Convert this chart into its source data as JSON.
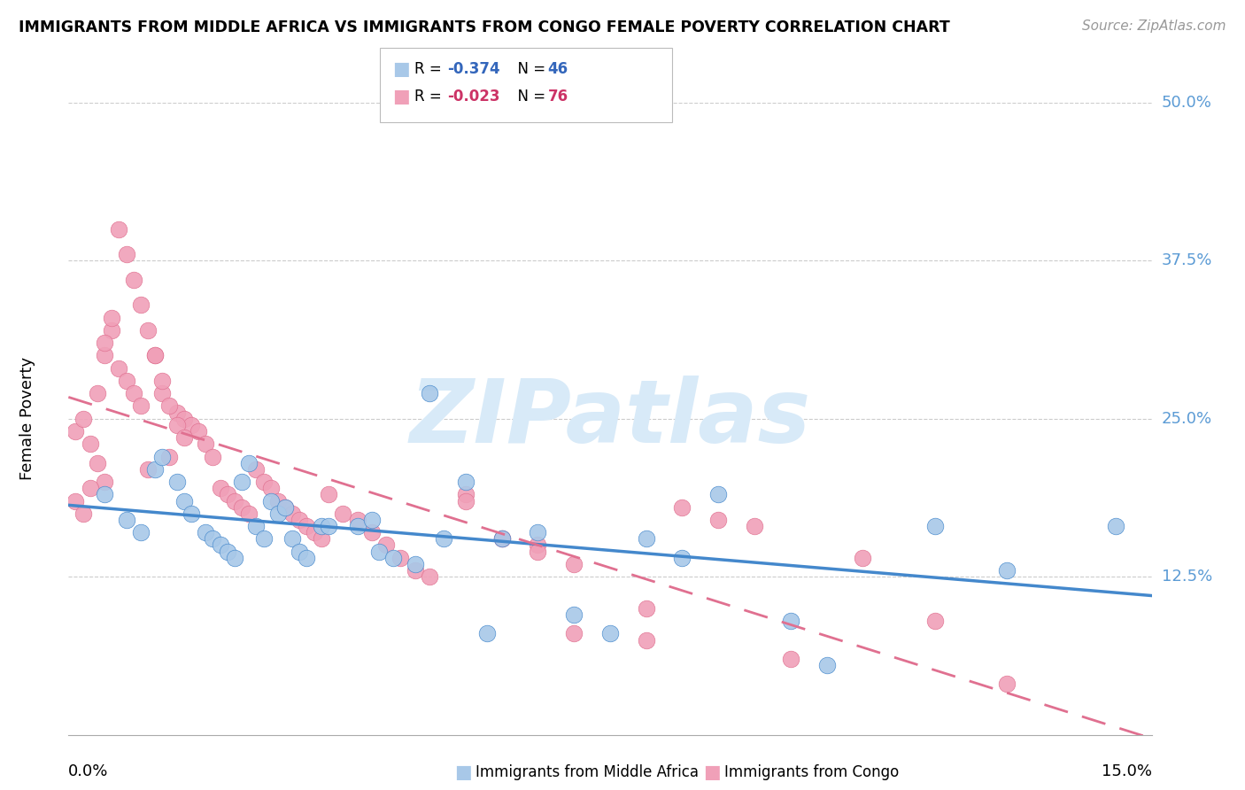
{
  "title": "IMMIGRANTS FROM MIDDLE AFRICA VS IMMIGRANTS FROM CONGO FEMALE POVERTY CORRELATION CHART",
  "source": "Source: ZipAtlas.com",
  "ylabel": "Female Poverty",
  "xlim": [
    0.0,
    0.15
  ],
  "ylim": [
    0.0,
    0.5
  ],
  "color_blue": "#a8c8e8",
  "color_pink": "#f0a0b8",
  "color_blue_line": "#4488cc",
  "color_pink_line": "#e07090",
  "color_grid": "#cccccc",
  "color_right_axis": "#5b9bd5",
  "watermark_color": "#d8eaf8",
  "blue_points_x": [
    0.005,
    0.008,
    0.012,
    0.015,
    0.016,
    0.017,
    0.019,
    0.02,
    0.021,
    0.022,
    0.023,
    0.024,
    0.025,
    0.026,
    0.027,
    0.028,
    0.029,
    0.03,
    0.031,
    0.032,
    0.033,
    0.035,
    0.036,
    0.04,
    0.042,
    0.043,
    0.045,
    0.048,
    0.05,
    0.052,
    0.055,
    0.058,
    0.06,
    0.065,
    0.07,
    0.075,
    0.08,
    0.085,
    0.09,
    0.1,
    0.105,
    0.12,
    0.13,
    0.145,
    0.01,
    0.013
  ],
  "blue_points_y": [
    0.19,
    0.17,
    0.21,
    0.2,
    0.185,
    0.175,
    0.16,
    0.155,
    0.15,
    0.145,
    0.14,
    0.2,
    0.215,
    0.165,
    0.155,
    0.185,
    0.175,
    0.18,
    0.155,
    0.145,
    0.14,
    0.165,
    0.165,
    0.165,
    0.17,
    0.145,
    0.14,
    0.135,
    0.27,
    0.155,
    0.2,
    0.08,
    0.155,
    0.16,
    0.095,
    0.08,
    0.155,
    0.14,
    0.19,
    0.09,
    0.055,
    0.165,
    0.13,
    0.165,
    0.16,
    0.22
  ],
  "pink_points_x": [
    0.001,
    0.002,
    0.003,
    0.004,
    0.005,
    0.005,
    0.006,
    0.007,
    0.008,
    0.009,
    0.01,
    0.011,
    0.012,
    0.013,
    0.014,
    0.015,
    0.016,
    0.017,
    0.018,
    0.019,
    0.02,
    0.021,
    0.022,
    0.023,
    0.024,
    0.025,
    0.026,
    0.027,
    0.028,
    0.029,
    0.03,
    0.031,
    0.032,
    0.033,
    0.034,
    0.035,
    0.036,
    0.038,
    0.04,
    0.042,
    0.044,
    0.046,
    0.048,
    0.05,
    0.055,
    0.06,
    0.065,
    0.07,
    0.08,
    0.085,
    0.09,
    0.095,
    0.1,
    0.11,
    0.12,
    0.13,
    0.001,
    0.002,
    0.003,
    0.004,
    0.005,
    0.006,
    0.007,
    0.008,
    0.009,
    0.01,
    0.011,
    0.012,
    0.013,
    0.014,
    0.015,
    0.016,
    0.055,
    0.06,
    0.065,
    0.07,
    0.08
  ],
  "pink_points_y": [
    0.24,
    0.25,
    0.23,
    0.27,
    0.3,
    0.2,
    0.32,
    0.29,
    0.28,
    0.27,
    0.26,
    0.21,
    0.3,
    0.27,
    0.22,
    0.255,
    0.25,
    0.245,
    0.24,
    0.23,
    0.22,
    0.195,
    0.19,
    0.185,
    0.18,
    0.175,
    0.21,
    0.2,
    0.195,
    0.185,
    0.18,
    0.175,
    0.17,
    0.165,
    0.16,
    0.155,
    0.19,
    0.175,
    0.17,
    0.16,
    0.15,
    0.14,
    0.13,
    0.125,
    0.19,
    0.155,
    0.15,
    0.08,
    0.1,
    0.18,
    0.17,
    0.165,
    0.06,
    0.14,
    0.09,
    0.04,
    0.185,
    0.175,
    0.195,
    0.215,
    0.31,
    0.33,
    0.4,
    0.38,
    0.36,
    0.34,
    0.32,
    0.3,
    0.28,
    0.26,
    0.245,
    0.235,
    0.185,
    0.155,
    0.145,
    0.135,
    0.075
  ]
}
